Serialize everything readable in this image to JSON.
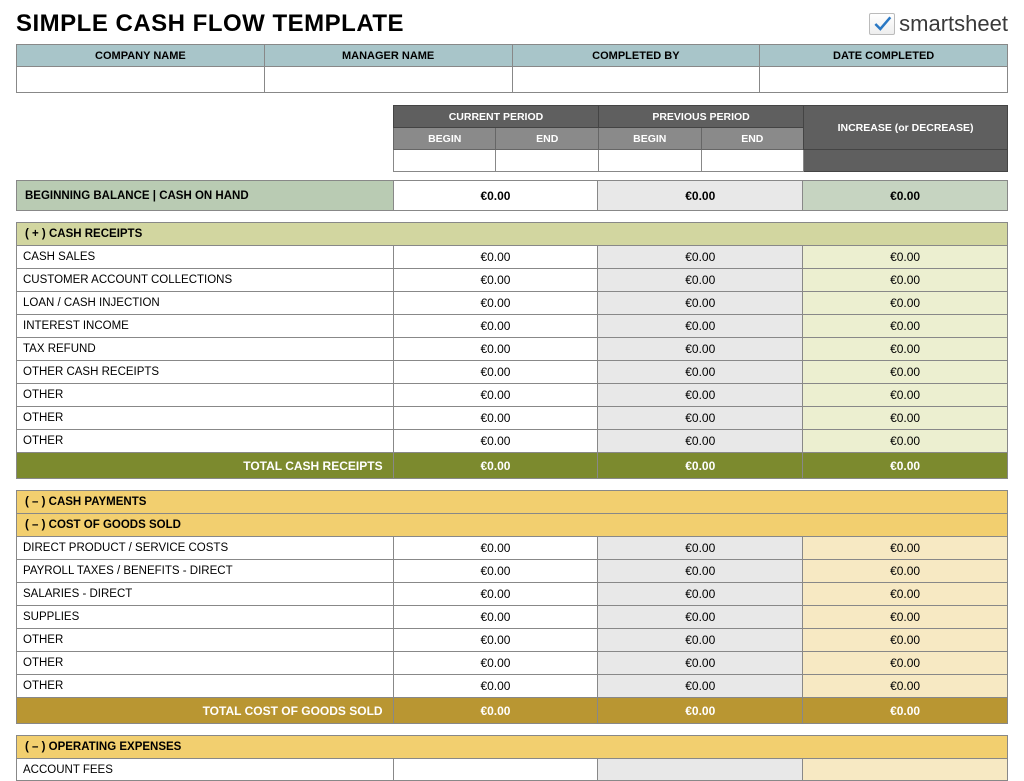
{
  "title": "SIMPLE CASH FLOW TEMPLATE",
  "logo": {
    "text": "smartsheet",
    "check_color": "#2a78c4"
  },
  "info_headers": {
    "company": "COMPANY NAME",
    "manager": "MANAGER NAME",
    "completed_by": "COMPLETED BY",
    "date_completed": "DATE COMPLETED"
  },
  "info_values": {
    "company": "",
    "manager": "",
    "completed_by": "",
    "date_completed": ""
  },
  "periods": {
    "current": "CURRENT PERIOD",
    "previous": "PREVIOUS PERIOD",
    "begin": "BEGIN",
    "end": "END",
    "inc_dec": "INCREASE (or DECREASE)",
    "cur_begin": "",
    "cur_end": "",
    "prev_begin": "",
    "prev_end": ""
  },
  "balance": {
    "label": "BEGINNING BALANCE  |  CASH ON HAND",
    "v1": "€0.00",
    "v2": "€0.00",
    "v3": "€0.00"
  },
  "receipts": {
    "section": "( + )   CASH RECEIPTS",
    "rows": [
      {
        "label": "CASH SALES",
        "v1": "€0.00",
        "v2": "€0.00",
        "v3": "€0.00"
      },
      {
        "label": "CUSTOMER ACCOUNT COLLECTIONS",
        "v1": "€0.00",
        "v2": "€0.00",
        "v3": "€0.00"
      },
      {
        "label": "LOAN / CASH INJECTION",
        "v1": "€0.00",
        "v2": "€0.00",
        "v3": "€0.00"
      },
      {
        "label": "INTEREST INCOME",
        "v1": "€0.00",
        "v2": "€0.00",
        "v3": "€0.00"
      },
      {
        "label": "TAX REFUND",
        "v1": "€0.00",
        "v2": "€0.00",
        "v3": "€0.00"
      },
      {
        "label": "OTHER CASH RECEIPTS",
        "v1": "€0.00",
        "v2": "€0.00",
        "v3": "€0.00"
      },
      {
        "label": "OTHER",
        "v1": "€0.00",
        "v2": "€0.00",
        "v3": "€0.00"
      },
      {
        "label": "OTHER",
        "v1": "€0.00",
        "v2": "€0.00",
        "v3": "€0.00"
      },
      {
        "label": "OTHER",
        "v1": "€0.00",
        "v2": "€0.00",
        "v3": "€0.00"
      }
    ],
    "total_label": "TOTAL CASH RECEIPTS",
    "total": {
      "v1": "€0.00",
      "v2": "€0.00",
      "v3": "€0.00"
    }
  },
  "payments": {
    "section": "( – )   CASH PAYMENTS"
  },
  "cogs": {
    "section": "( – )   COST OF GOODS SOLD",
    "rows": [
      {
        "label": "DIRECT PRODUCT / SERVICE COSTS",
        "v1": "€0.00",
        "v2": "€0.00",
        "v3": "€0.00"
      },
      {
        "label": "PAYROLL TAXES / BENEFITS - DIRECT",
        "v1": "€0.00",
        "v2": "€0.00",
        "v3": "€0.00"
      },
      {
        "label": "SALARIES - DIRECT",
        "v1": "€0.00",
        "v2": "€0.00",
        "v3": "€0.00"
      },
      {
        "label": "SUPPLIES",
        "v1": "€0.00",
        "v2": "€0.00",
        "v3": "€0.00"
      },
      {
        "label": "OTHER",
        "v1": "€0.00",
        "v2": "€0.00",
        "v3": "€0.00"
      },
      {
        "label": "OTHER",
        "v1": "€0.00",
        "v2": "€0.00",
        "v3": "€0.00"
      },
      {
        "label": "OTHER",
        "v1": "€0.00",
        "v2": "€0.00",
        "v3": "€0.00"
      }
    ],
    "total_label": "TOTAL COST OF GOODS SOLD",
    "total": {
      "v1": "€0.00",
      "v2": "€0.00",
      "v3": "€0.00"
    }
  },
  "opex": {
    "section": "( – )   OPERATING EXPENSES",
    "first_row": "ACCOUNT FEES"
  },
  "colors": {
    "blue_header": "#a8c5c9",
    "olive_section": "#d2d6a0",
    "olive_total": "#7c8a2e",
    "yellow_section": "#f2cf6f",
    "gold_total": "#b99632",
    "grey_dark": "#5f5f5f",
    "grey_mid": "#8a8a8a",
    "balance_bg": "#b9cbb3"
  }
}
